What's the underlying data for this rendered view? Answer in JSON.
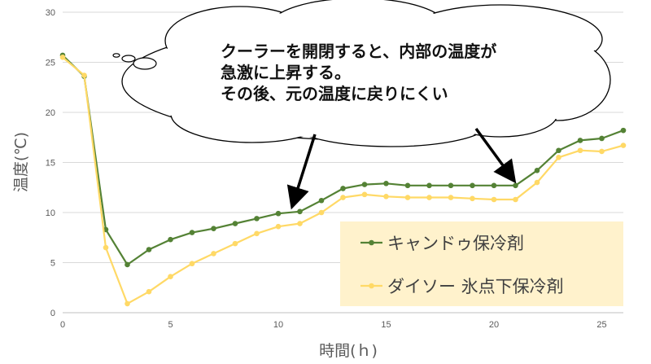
{
  "chart_data": {
    "type": "line",
    "title": "",
    "xlabel": "時間(ｈ)",
    "ylabel": "温度(℃)",
    "xlim": [
      0,
      26
    ],
    "ylim": [
      0,
      30
    ],
    "x_ticks": [
      0,
      5,
      10,
      15,
      20,
      25
    ],
    "y_ticks": [
      0,
      5,
      10,
      15,
      20,
      25,
      30
    ],
    "grid": "horizontal",
    "legend_position": "bottom-right",
    "series": [
      {
        "name": "キャンドゥ保冷剤",
        "color": "#548235",
        "x": [
          0,
          1,
          2,
          3,
          4,
          5,
          6,
          7,
          8,
          9,
          10,
          11,
          12,
          13,
          14,
          15,
          16,
          17,
          18,
          19,
          20,
          21,
          22,
          23,
          24,
          25,
          26
        ],
        "values": [
          25.7,
          23.6,
          8.3,
          4.8,
          6.3,
          7.3,
          8.0,
          8.4,
          8.9,
          9.4,
          9.9,
          10.1,
          11.2,
          12.4,
          12.8,
          12.9,
          12.7,
          12.7,
          12.7,
          12.7,
          12.7,
          12.7,
          14.2,
          16.2,
          17.2,
          17.4,
          18.2
        ]
      },
      {
        "name": "ダイソー 氷点下保冷剤",
        "color": "#FFD966",
        "x": [
          0,
          1,
          2,
          3,
          4,
          5,
          6,
          7,
          8,
          9,
          10,
          11,
          12,
          13,
          14,
          15,
          16,
          17,
          18,
          19,
          20,
          21,
          22,
          23,
          24,
          25,
          26
        ],
        "values": [
          25.5,
          23.7,
          6.5,
          0.9,
          2.1,
          3.6,
          4.9,
          5.9,
          6.9,
          7.9,
          8.6,
          8.9,
          10.0,
          11.5,
          11.8,
          11.6,
          11.5,
          11.5,
          11.5,
          11.4,
          11.3,
          11.3,
          13.0,
          15.5,
          16.2,
          16.1,
          16.7
        ]
      }
    ],
    "annotation": {
      "lines": [
        "クーラーを開閉すると、内部の温度が",
        "急激に上昇する。",
        "その後、元の温度に戻りにくい"
      ],
      "arrow_targets_x": [
        11,
        21
      ]
    },
    "colors": {
      "grid": "#d9d9d9",
      "axis": "#bfbfbf",
      "legend_bg": "#FFF2CC",
      "cloud_fill": "#ffffff",
      "cloud_stroke": "#000000",
      "arrow": "#000000"
    }
  }
}
